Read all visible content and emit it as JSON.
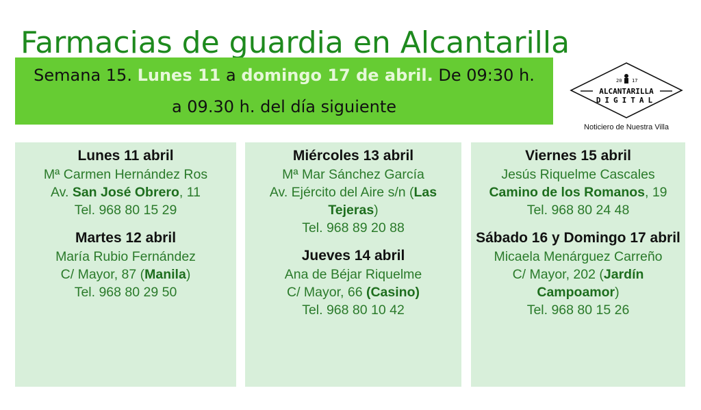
{
  "title": "Farmacias de guardia en Alcantarilla",
  "banner": {
    "prefix": "Semana 15. ",
    "from": "Lunes 11",
    "a1": " a  ",
    "to": "domingo 17 de abril.",
    "suffix": "  De 09:30 h. a 09.30 h. del día siguiente"
  },
  "logo": {
    "year_left": "20",
    "year_right": "17",
    "name": "ALCANTARILLA",
    "sub": "DIGITAL",
    "tagline": "Noticiero de Nuestra Villa"
  },
  "colors": {
    "banner": "#66cc33",
    "panel": "#d8efda",
    "text_green": "#2a7a2a"
  },
  "columns": [
    [
      {
        "day": "Lunes 11 abril",
        "name": "Mª Carmen Hernández Ros",
        "addr_pre": "Av. ",
        "addr_bold": "San José Obrero",
        "addr_post": ", 11",
        "tel": "Tel. 968 80 15 29"
      },
      {
        "day": "Martes 12 abril",
        "name": "María Rubio Fernández",
        "addr_pre": "C/ Mayor, 87 (",
        "addr_bold": "Manila",
        "addr_post": ")",
        "tel": "Tel. 968 80 29 50"
      }
    ],
    [
      {
        "day": "Miércoles 13 abril",
        "name": "Mª Mar Sánchez García",
        "addr_pre": "Av. Ejército del Aire s/n (",
        "addr_bold": "Las Tejeras",
        "addr_post": ")",
        "tel": "Tel. 968 89 20 88"
      },
      {
        "day": "Jueves 14 abril",
        "name": "Ana de Béjar Riquelme",
        "addr_pre": "C/ Mayor, 66 ",
        "addr_bold": "(Casino)",
        "addr_post": "",
        "tel": "Tel. 968 80 10 42"
      }
    ],
    [
      {
        "day": "Viernes 15 abril",
        "name": "Jesús Riquelme Cascales",
        "addr_pre": "",
        "addr_bold": "Camino de los Romanos",
        "addr_post": ", 19",
        "tel": "Tel. 968 80 24 48"
      },
      {
        "day": "Sábado 16 y Domingo 17 abril",
        "name": "Micaela Menárguez Carreño",
        "addr_pre": "C/ Mayor, 202 (",
        "addr_bold": "Jardín Campoamor",
        "addr_post": ")",
        "tel": "Tel. 968 80 15 26"
      }
    ]
  ]
}
